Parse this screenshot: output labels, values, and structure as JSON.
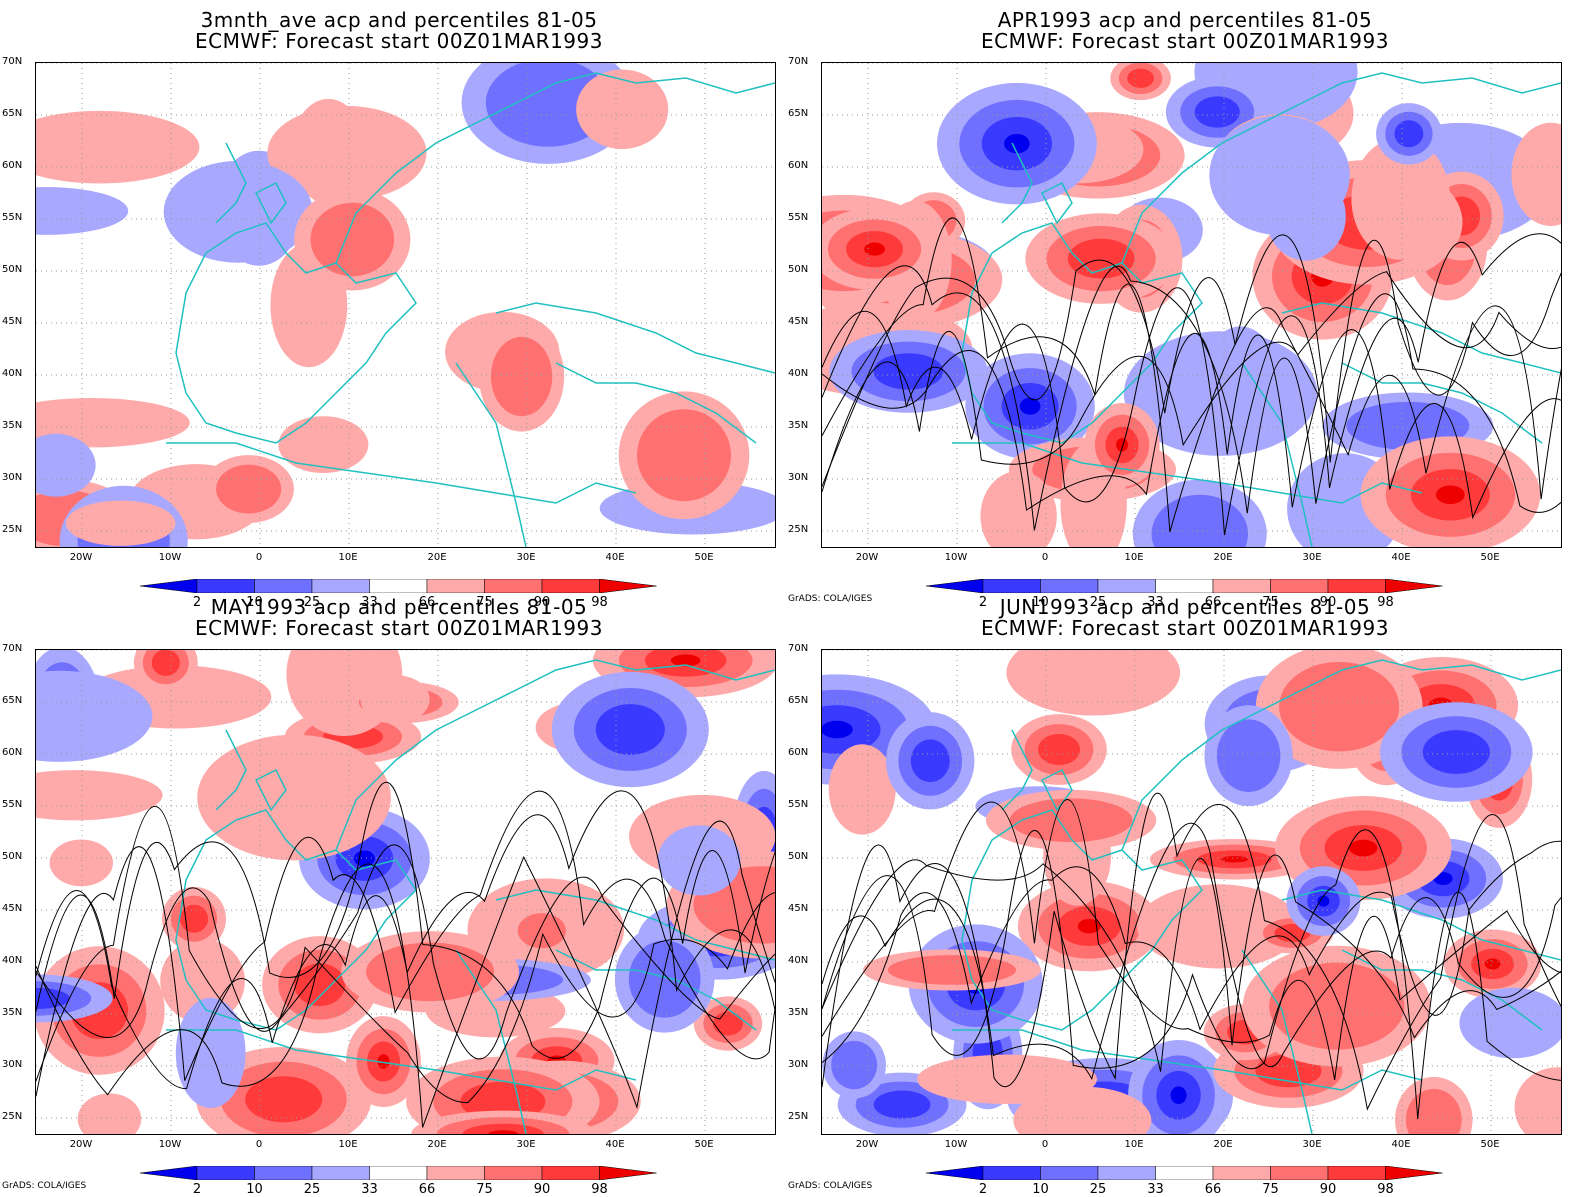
{
  "panels": [
    {
      "id": "p1",
      "title1": "3mnth_ave acp and percentiles 81-05",
      "title2": "ECMWF: Forecast start 00Z01MAR1993",
      "credit": ""
    },
    {
      "id": "p2",
      "title1": "APR1993 acp and percentiles 81-05",
      "title2": "ECMWF: Forecast start 00Z01MAR1993",
      "credit": "GrADS: COLA/IGES"
    },
    {
      "id": "p3",
      "title1": "MAY1993 acp and percentiles 81-05",
      "title2": "ECMWF: Forecast start 00Z01MAR1993",
      "credit": "GrADS: COLA/IGES"
    },
    {
      "id": "p4",
      "title1": "JUN1993 acp and percentiles 81-05",
      "title2": "ECMWF: Forecast start 00Z01MAR1993",
      "credit": "GrADS: COLA/IGES"
    }
  ],
  "lat_labels": [
    "70N",
    "65N",
    "60N",
    "55N",
    "50N",
    "45N",
    "40N",
    "35N",
    "30N",
    "25N"
  ],
  "lon_labels": [
    "20W",
    "10W",
    "0",
    "10E",
    "20E",
    "30E",
    "40E",
    "50E"
  ],
  "colorbar": {
    "labels": [
      "2",
      "10",
      "25",
      "33",
      "66",
      "75",
      "90",
      "98"
    ],
    "colors": [
      "#0000ee",
      "#3a3aff",
      "#7070ff",
      "#a8a8ff",
      "#ffffff",
      "#ffaaaa",
      "#ff7070",
      "#ff3a3a",
      "#ee0000"
    ]
  },
  "colors": {
    "coast": "#20c0c0",
    "contour": "#000000",
    "grid": "#999999"
  }
}
